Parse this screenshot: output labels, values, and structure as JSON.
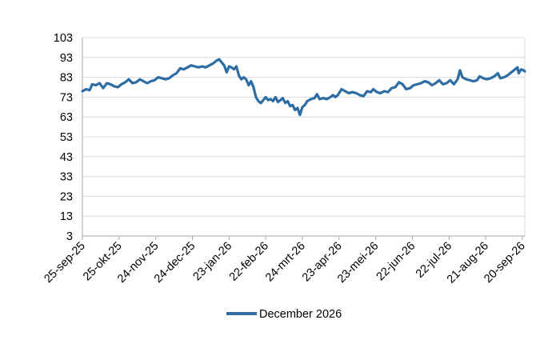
{
  "chart_data": {
    "type": "line",
    "title": "",
    "xlabel": "",
    "ylabel": "",
    "ylim": [
      3,
      103
    ],
    "yticks": [
      3,
      13,
      23,
      33,
      43,
      53,
      63,
      73,
      83,
      93,
      103
    ],
    "xlim": [
      "2025-09-25",
      "2026-09-22"
    ],
    "xticks": [
      {
        "date": "2025-09-25",
        "label": "25-sep-25"
      },
      {
        "date": "2025-10-25",
        "label": "25-okt-25"
      },
      {
        "date": "2025-11-24",
        "label": "24-nov-25"
      },
      {
        "date": "2025-12-24",
        "label": "24-dec-25"
      },
      {
        "date": "2026-01-23",
        "label": "23-jan-26"
      },
      {
        "date": "2026-02-22",
        "label": "22-feb-26"
      },
      {
        "date": "2026-03-24",
        "label": "24-mrt-26"
      },
      {
        "date": "2026-04-23",
        "label": "23-apr-26"
      },
      {
        "date": "2026-05-23",
        "label": "23-mei-26"
      },
      {
        "date": "2026-06-22",
        "label": "22-jun-26"
      },
      {
        "date": "2026-07-22",
        "label": "22-jul-26"
      },
      {
        "date": "2026-08-21",
        "label": "21-aug-26"
      },
      {
        "date": "2026-09-20",
        "label": "20-sep-26"
      }
    ],
    "grid": true,
    "legend_position": "bottom",
    "series": [
      {
        "name": "December 2026",
        "color": "#2e6da4",
        "points": [
          [
            "2025-09-25",
            76.0
          ],
          [
            "2025-09-28",
            77.0
          ],
          [
            "2025-10-01",
            76.5
          ],
          [
            "2025-10-03",
            79.5
          ],
          [
            "2025-10-06",
            79.0
          ],
          [
            "2025-10-09",
            80.0
          ],
          [
            "2025-10-12",
            77.5
          ],
          [
            "2025-10-15",
            80.0
          ],
          [
            "2025-10-18",
            79.5
          ],
          [
            "2025-10-21",
            78.5
          ],
          [
            "2025-10-24",
            78.0
          ],
          [
            "2025-10-27",
            79.5
          ],
          [
            "2025-10-30",
            80.5
          ],
          [
            "2025-11-02",
            82.0
          ],
          [
            "2025-11-05",
            80.0
          ],
          [
            "2025-11-08",
            80.5
          ],
          [
            "2025-11-11",
            82.0
          ],
          [
            "2025-11-14",
            81.0
          ],
          [
            "2025-11-17",
            80.0
          ],
          [
            "2025-11-20",
            81.0
          ],
          [
            "2025-11-23",
            81.5
          ],
          [
            "2025-11-26",
            83.0
          ],
          [
            "2025-11-29",
            82.5
          ],
          [
            "2025-12-02",
            82.0
          ],
          [
            "2025-12-05",
            82.5
          ],
          [
            "2025-12-08",
            84.0
          ],
          [
            "2025-12-11",
            85.0
          ],
          [
            "2025-12-14",
            87.5
          ],
          [
            "2025-12-17",
            87.0
          ],
          [
            "2025-12-20",
            88.0
          ],
          [
            "2025-12-23",
            89.0
          ],
          [
            "2025-12-26",
            88.5
          ],
          [
            "2025-12-29",
            88.0
          ],
          [
            "2026-01-01",
            88.5
          ],
          [
            "2026-01-04",
            88.0
          ],
          [
            "2026-01-07",
            89.0
          ],
          [
            "2026-01-10",
            90.0
          ],
          [
            "2026-01-13",
            91.5
          ],
          [
            "2026-01-15",
            92.0
          ],
          [
            "2026-01-17",
            90.5
          ],
          [
            "2026-01-19",
            89.0
          ],
          [
            "2026-01-21",
            85.5
          ],
          [
            "2026-01-23",
            88.5
          ],
          [
            "2026-01-25",
            88.0
          ],
          [
            "2026-01-27",
            87.0
          ],
          [
            "2026-01-29",
            88.5
          ],
          [
            "2026-01-31",
            84.0
          ],
          [
            "2026-02-02",
            82.0
          ],
          [
            "2026-02-04",
            83.0
          ],
          [
            "2026-02-06",
            82.0
          ],
          [
            "2026-02-08",
            79.0
          ],
          [
            "2026-02-10",
            81.0
          ],
          [
            "2026-02-12",
            78.0
          ],
          [
            "2026-02-14",
            73.0
          ],
          [
            "2026-02-16",
            71.0
          ],
          [
            "2026-02-18",
            70.0
          ],
          [
            "2026-02-20",
            71.5
          ],
          [
            "2026-02-22",
            73.0
          ],
          [
            "2026-02-24",
            71.5
          ],
          [
            "2026-02-26",
            72.0
          ],
          [
            "2026-02-28",
            71.0
          ],
          [
            "2026-03-02",
            73.0
          ],
          [
            "2026-03-04",
            70.5
          ],
          [
            "2026-03-06",
            71.5
          ],
          [
            "2026-03-08",
            72.5
          ],
          [
            "2026-03-10",
            70.0
          ],
          [
            "2026-03-12",
            71.0
          ],
          [
            "2026-03-14",
            68.5
          ],
          [
            "2026-03-16",
            69.0
          ],
          [
            "2026-03-18",
            66.5
          ],
          [
            "2026-03-20",
            67.5
          ],
          [
            "2026-03-22",
            64.0
          ],
          [
            "2026-03-24",
            68.0
          ],
          [
            "2026-03-26",
            69.0
          ],
          [
            "2026-03-28",
            71.0
          ],
          [
            "2026-03-31",
            72.0
          ],
          [
            "2026-04-03",
            72.5
          ],
          [
            "2026-04-05",
            74.5
          ],
          [
            "2026-04-07",
            72.0
          ],
          [
            "2026-04-10",
            72.5
          ],
          [
            "2026-04-13",
            72.0
          ],
          [
            "2026-04-16",
            73.0
          ],
          [
            "2026-04-18",
            74.0
          ],
          [
            "2026-04-20",
            73.0
          ],
          [
            "2026-04-22",
            74.0
          ],
          [
            "2026-04-25",
            77.0
          ],
          [
            "2026-04-28",
            76.0
          ],
          [
            "2026-05-01",
            75.0
          ],
          [
            "2026-05-04",
            75.5
          ],
          [
            "2026-05-07",
            75.0
          ],
          [
            "2026-05-10",
            74.0
          ],
          [
            "2026-05-13",
            73.5
          ],
          [
            "2026-05-16",
            76.0
          ],
          [
            "2026-05-19",
            75.5
          ],
          [
            "2026-05-21",
            77.0
          ],
          [
            "2026-05-24",
            75.5
          ],
          [
            "2026-05-27",
            75.0
          ],
          [
            "2026-05-30",
            76.0
          ],
          [
            "2026-06-02",
            75.5
          ],
          [
            "2026-06-05",
            77.5
          ],
          [
            "2026-06-08",
            78.0
          ],
          [
            "2026-06-11",
            80.5
          ],
          [
            "2026-06-14",
            79.5
          ],
          [
            "2026-06-17",
            77.0
          ],
          [
            "2026-06-20",
            77.5
          ],
          [
            "2026-06-23",
            79.0
          ],
          [
            "2026-06-26",
            79.5
          ],
          [
            "2026-06-29",
            80.0
          ],
          [
            "2026-07-02",
            81.0
          ],
          [
            "2026-07-05",
            80.5
          ],
          [
            "2026-07-08",
            79.0
          ],
          [
            "2026-07-11",
            80.0
          ],
          [
            "2026-07-14",
            81.5
          ],
          [
            "2026-07-17",
            79.5
          ],
          [
            "2026-07-20",
            80.0
          ],
          [
            "2026-07-23",
            81.5
          ],
          [
            "2026-07-26",
            79.5
          ],
          [
            "2026-07-29",
            82.0
          ],
          [
            "2026-07-31",
            86.5
          ],
          [
            "2026-08-02",
            83.0
          ],
          [
            "2026-08-05",
            82.0
          ],
          [
            "2026-08-08",
            81.5
          ],
          [
            "2026-08-11",
            81.0
          ],
          [
            "2026-08-14",
            81.5
          ],
          [
            "2026-08-16",
            83.5
          ],
          [
            "2026-08-19",
            82.5
          ],
          [
            "2026-08-22",
            82.0
          ],
          [
            "2026-08-25",
            82.5
          ],
          [
            "2026-08-28",
            83.5
          ],
          [
            "2026-08-31",
            85.0
          ],
          [
            "2026-09-02",
            82.5
          ],
          [
            "2026-09-05",
            83.0
          ],
          [
            "2026-09-08",
            84.0
          ],
          [
            "2026-09-11",
            85.5
          ],
          [
            "2026-09-14",
            87.0
          ],
          [
            "2026-09-16",
            88.0
          ],
          [
            "2026-09-17",
            85.0
          ],
          [
            "2026-09-19",
            87.0
          ],
          [
            "2026-09-21",
            86.5
          ],
          [
            "2026-09-22",
            86.0
          ]
        ]
      }
    ]
  }
}
